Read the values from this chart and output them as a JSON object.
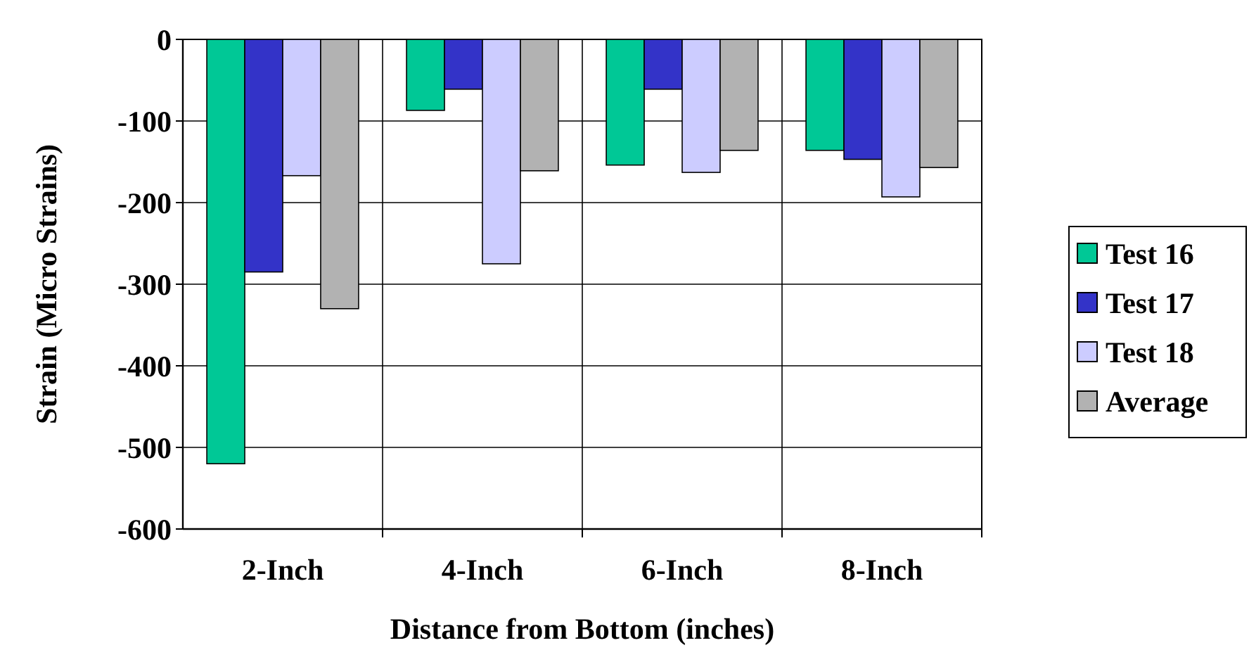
{
  "chart_data": {
    "type": "bar",
    "xlabel": "Distance from Bottom (inches)",
    "ylabel": "Strain (Micro Strains)",
    "categories": [
      "2-Inch",
      "4-Inch",
      "6-Inch",
      "8-Inch"
    ],
    "series": [
      {
        "name": "Test 16",
        "color": "#00c896",
        "values": [
          -520,
          -87,
          -154,
          -136
        ]
      },
      {
        "name": "Test 17",
        "color": "#3333c8",
        "values": [
          -285,
          -61,
          -61,
          -147
        ]
      },
      {
        "name": "Test 18",
        "color": "#ccccff",
        "values": [
          -167,
          -275,
          -163,
          -193
        ]
      },
      {
        "name": "Average",
        "color": "#b2b2b2",
        "values": [
          -330,
          -161,
          -136,
          -157
        ]
      }
    ],
    "ylim": [
      -600,
      0
    ],
    "yticks": [
      -600,
      -500,
      -400,
      -300,
      -200,
      -100,
      0
    ],
    "grid": "y",
    "legend": "right"
  }
}
